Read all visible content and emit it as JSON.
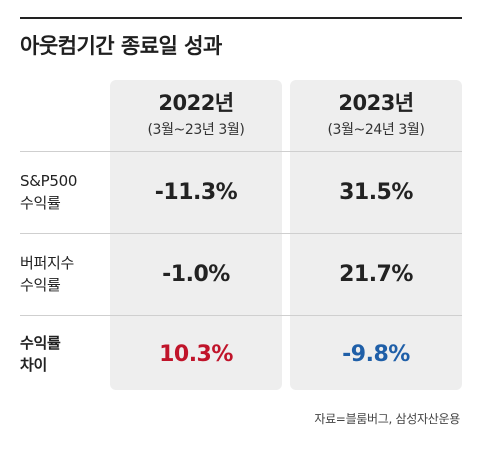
{
  "chart_data": {
    "type": "table",
    "title": "아웃컴기간 종료일 성과",
    "columns": [
      {
        "year": "2022년",
        "period": "(3월~23년 3월)"
      },
      {
        "year": "2023년",
        "period": "(3월~24년 3월)"
      }
    ],
    "rows": [
      {
        "label_lines": [
          "S&P500",
          "수익률"
        ],
        "values": [
          "-11.3%",
          "31.5%"
        ],
        "numeric": [
          -11.3,
          31.5
        ]
      },
      {
        "label_lines": [
          "버퍼지수",
          "수익률"
        ],
        "values": [
          "-1.0%",
          "21.7%"
        ],
        "numeric": [
          -1.0,
          21.7
        ]
      },
      {
        "label_lines": [
          "수익률",
          "차이"
        ],
        "values": [
          "10.3%",
          "-9.8%"
        ],
        "numeric": [
          10.3,
          -9.8
        ]
      }
    ],
    "source": "자료=블룸버그, 삼성자산운용"
  },
  "colors": {
    "positive_diff": "#c0142a",
    "negative_diff": "#1f5fa8",
    "default_value": "#222222",
    "column_bg": "#eeeeee"
  }
}
